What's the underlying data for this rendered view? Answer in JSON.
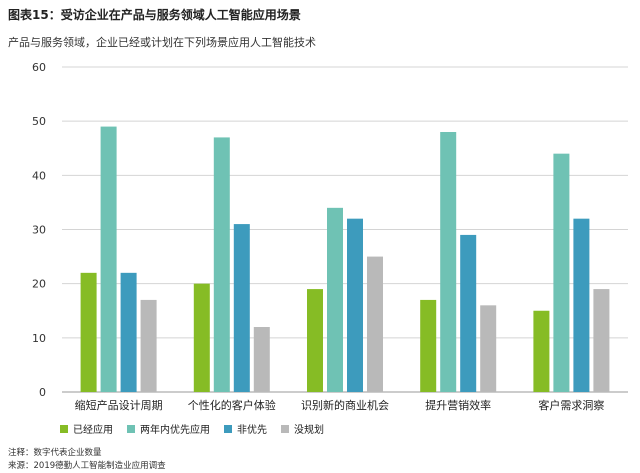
{
  "title": "图表15：受访企业在产品与服务领域人工智能应用场景",
  "subtitle": "产品与服务领域，企业已经或计划在下列场景应用人工智能技术",
  "note": "注释：数字代表企业数量",
  "source": "来源：2019德勤人工智能制造业应用调查",
  "chart_data": {
    "type": "bar",
    "categories": [
      "缩短产品设计周期",
      "个性化的客户体验",
      "识别新的商业机会",
      "提升营销效率",
      "客户需求洞察"
    ],
    "series": [
      {
        "name": "已经应用",
        "color": "#86bc25",
        "values": [
          22,
          20,
          19,
          17,
          15
        ]
      },
      {
        "name": "两年内优先应用",
        "color": "#6fc2b4",
        "values": [
          49,
          47,
          34,
          48,
          44
        ]
      },
      {
        "name": "非优先",
        "color": "#3d9bbd",
        "values": [
          22,
          31,
          32,
          29,
          32
        ]
      },
      {
        "name": "没规划",
        "color": "#b9b9b9",
        "values": [
          17,
          12,
          25,
          16,
          19
        ]
      }
    ],
    "ylim": [
      0,
      60
    ],
    "yticks": [
      "0",
      "10",
      "20",
      "30",
      "40",
      "50",
      "60"
    ],
    "grid": true,
    "legend_position": "bottom-left"
  }
}
